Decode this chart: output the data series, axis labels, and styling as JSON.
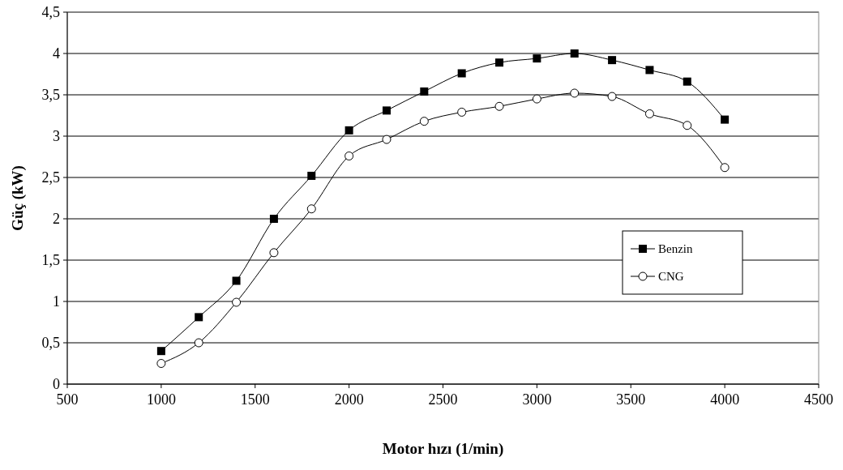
{
  "chart_data": {
    "type": "line",
    "xlabel": "Motor hızı (1/min)",
    "ylabel": "Güç (kW)",
    "x": [
      1000,
      1200,
      1400,
      1600,
      1800,
      2000,
      2200,
      2400,
      2600,
      2800,
      3000,
      3200,
      3400,
      3600,
      3800,
      4000
    ],
    "series": [
      {
        "name": "Benzin",
        "color": "#000000",
        "marker": "square",
        "values": [
          0.4,
          0.81,
          1.25,
          2.0,
          2.52,
          3.07,
          3.31,
          3.54,
          3.76,
          3.89,
          3.94,
          4.0,
          3.92,
          3.8,
          3.66,
          3.2
        ]
      },
      {
        "name": "CNG",
        "color": "#000000",
        "marker": "circle",
        "values": [
          0.25,
          0.5,
          0.99,
          1.59,
          2.12,
          2.76,
          2.96,
          3.18,
          3.29,
          3.36,
          3.45,
          3.52,
          3.48,
          3.27,
          3.13,
          2.62
        ]
      }
    ],
    "xlim": [
      500,
      4500
    ],
    "xticks": [
      500,
      1000,
      1500,
      2000,
      2500,
      3000,
      3500,
      4000,
      4500
    ],
    "ylim": [
      0,
      4.5
    ],
    "yticks": [
      0,
      {
        "value": 0.5,
        "label": "0,5"
      },
      1,
      {
        "value": 1.5,
        "label": "1,5"
      },
      2,
      {
        "value": 2.5,
        "label": "2,5"
      },
      3,
      {
        "value": 3.5,
        "label": "3,5"
      },
      4,
      {
        "value": 4.5,
        "label": "4,5"
      }
    ],
    "grid": "y",
    "legend": "right",
    "line_style": "solid"
  }
}
